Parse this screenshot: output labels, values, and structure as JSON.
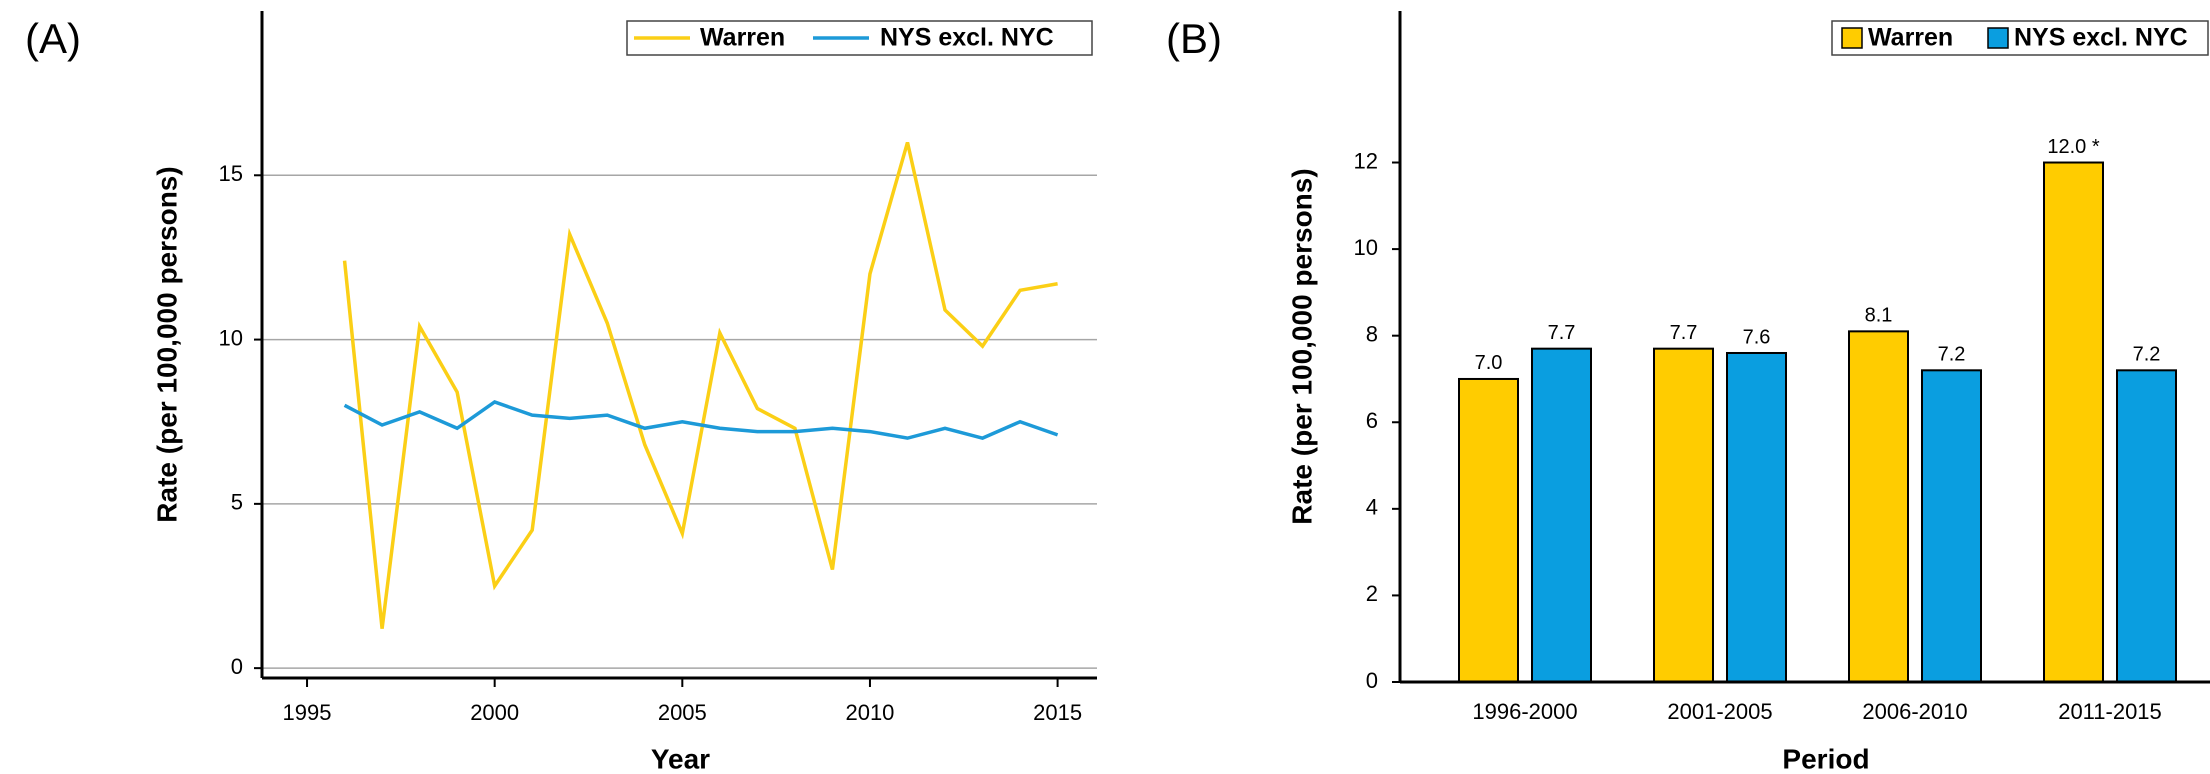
{
  "chart_data": [
    {
      "type": "line",
      "panel_label": "(A)",
      "x_label": "Year",
      "y_label": "Rate (per 100,000 persons)",
      "x": [
        1996,
        1997,
        1998,
        1999,
        2000,
        2001,
        2002,
        2003,
        2004,
        2005,
        2006,
        2007,
        2008,
        2009,
        2010,
        2011,
        2012,
        2013,
        2014,
        2015
      ],
      "series": [
        {
          "name": "Warren",
          "color": "#fbcf16",
          "values": [
            12.4,
            1.2,
            10.4,
            8.4,
            2.5,
            4.2,
            13.2,
            10.5,
            6.8,
            4.1,
            10.2,
            7.9,
            7.3,
            3.0,
            12.0,
            16.0,
            10.9,
            9.8,
            11.5,
            11.7
          ]
        },
        {
          "name": "NYS excl. NYC",
          "color": "#1d9ad8",
          "values": [
            8.0,
            7.4,
            7.8,
            7.3,
            8.1,
            7.7,
            7.6,
            7.7,
            7.3,
            7.5,
            7.3,
            7.2,
            7.2,
            7.3,
            7.2,
            7.0,
            7.3,
            7.0,
            7.5,
            7.1
          ]
        }
      ],
      "xlim": [
        1993.8,
        2016.05
      ],
      "xticks": [
        1995,
        2000,
        2005,
        2010,
        2015
      ],
      "ylim": [
        -0.3,
        20
      ],
      "yticks": [
        0,
        5,
        10,
        15
      ],
      "grid": true,
      "legend": "top-right"
    },
    {
      "type": "bar",
      "panel_label": "(B)",
      "x_label": "Period",
      "y_label": "Rate (per 100,000 persons)",
      "categories": [
        "1996-2000",
        "2001-2005",
        "2006-2010",
        "2011-2015"
      ],
      "series": [
        {
          "name": "Warren",
          "color": "#ffcc00",
          "values": [
            7.0,
            7.7,
            8.1,
            12.0
          ],
          "value_labels": [
            "7.0",
            "7.7",
            "8.1",
            "12.0 *"
          ]
        },
        {
          "name": "NYS excl. NYC",
          "color": "#0a9ee0",
          "values": [
            7.7,
            7.6,
            7.2,
            7.2
          ],
          "value_labels": [
            "7.7",
            "7.6",
            "7.2",
            "7.2"
          ]
        }
      ],
      "ylim": [
        0,
        15.5
      ],
      "yticks": [
        0,
        2,
        4,
        6,
        8,
        10,
        12
      ],
      "grid": false,
      "legend": "top-right"
    }
  ]
}
